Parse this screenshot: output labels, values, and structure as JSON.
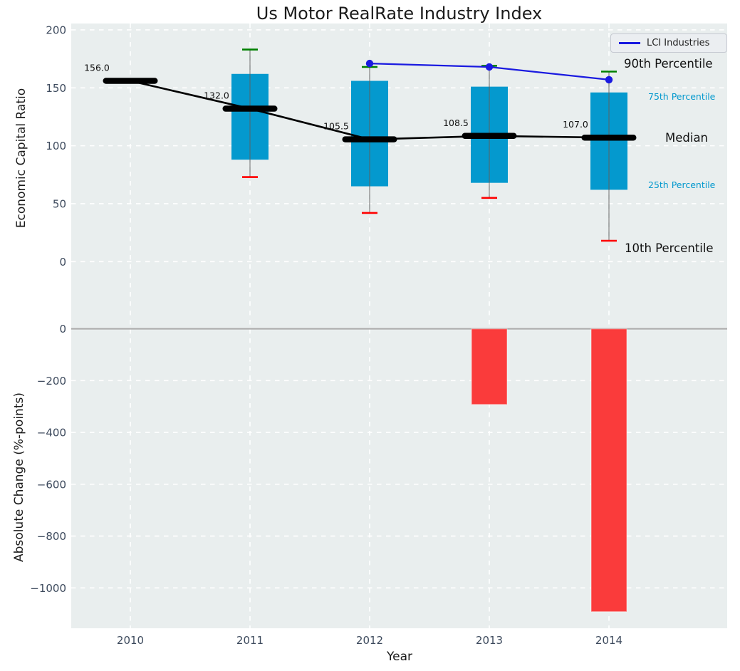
{
  "colors": {
    "plot_bg": "#e9eeee",
    "grid": "#ffffff",
    "box": "#0499ce",
    "bar_negative": "#fa3b3b",
    "p90_cap": "#008000",
    "p10_cap": "#ff0000",
    "median": "#000000",
    "lci_line": "#1a1ae0",
    "tick_text": "#3d4a5d",
    "zero_line": "#aaaaaa",
    "whisker": "#606060"
  },
  "chart_data": [
    {
      "type": "boxplot",
      "panel": "top",
      "title": "Us Motor RealRate Industry Index",
      "ylabel": "Economic Capital Ratio",
      "categories": [
        "2010",
        "2011",
        "2012",
        "2013",
        "2014"
      ],
      "ylim": [
        -57,
        205
      ],
      "yticks": [
        0,
        50,
        100,
        150,
        200
      ],
      "ytick_labels": [
        "0",
        "50",
        "100",
        "150",
        "200"
      ],
      "grid": "white-dashed",
      "legend_position": "upper right",
      "median": [
        156.0,
        132.0,
        105.5,
        108.5,
        107.0
      ],
      "median_labels": [
        "156.0",
        "132.0",
        "105.5",
        "108.5",
        "107.0"
      ],
      "q25": [
        null,
        88,
        65,
        68,
        62
      ],
      "q75": [
        null,
        162,
        156,
        151,
        146
      ],
      "p10": [
        null,
        73,
        42,
        55,
        18
      ],
      "p90": [
        null,
        183,
        168,
        169,
        164
      ],
      "series": [
        {
          "name": "LCI Industries",
          "x_indices": [
            2,
            3,
            4
          ],
          "values": [
            171,
            168,
            157
          ],
          "marker": "circle"
        }
      ],
      "annotation_labels": {
        "p90": "90th Percentile",
        "p75": "75th Percentile",
        "median": "Median",
        "p25": "25th Percentile",
        "p10": "10th Percentile"
      }
    },
    {
      "type": "bar",
      "panel": "bottom",
      "ylabel": "Absolute Change (%-points)",
      "xlabel": "Year",
      "categories": [
        "2010",
        "2011",
        "2012",
        "2013",
        "2014"
      ],
      "ylim": [
        -1156,
        5
      ],
      "yticks": [
        0,
        -200,
        -400,
        -600,
        -800,
        -1000
      ],
      "ytick_labels": [
        "0",
        "−200",
        "−400",
        "−600",
        "−800",
        "−1000"
      ],
      "values": [
        null,
        null,
        null,
        -292,
        -1092
      ]
    }
  ]
}
